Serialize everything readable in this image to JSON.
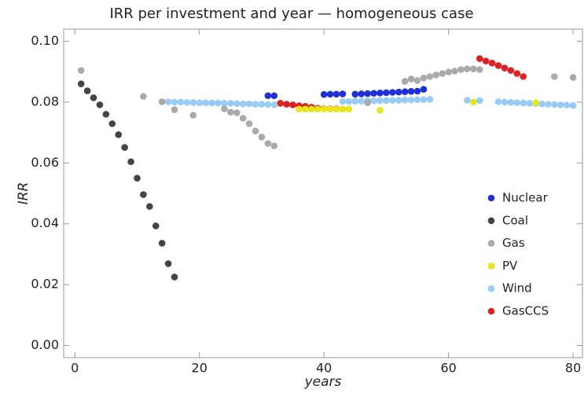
{
  "chart_data": {
    "type": "scatter",
    "title": "IRR per investment and year — homogeneous case",
    "x_label": "years",
    "y_label": "IRR",
    "xlim": [
      -1.8,
      81.5
    ],
    "ylim": [
      -0.004,
      0.104
    ],
    "xticks": [
      0,
      20,
      40,
      60,
      80
    ],
    "yticks": [
      {
        "value": 0,
        "label": "0.00"
      },
      {
        "value": 0.02,
        "label": "0.02"
      },
      {
        "value": 0.04,
        "label": "0.04"
      },
      {
        "value": 0.06,
        "label": "0.06"
      },
      {
        "value": 0.08,
        "label": "0.08"
      },
      {
        "value": 0.1,
        "label": "0.10"
      }
    ],
    "legend": "lower right",
    "series": [
      {
        "name": "Nuclear",
        "color": "#1f2fd6",
        "x": [
          31,
          32,
          40,
          41,
          42,
          43,
          45,
          46,
          47,
          48,
          49,
          50,
          51,
          52,
          53,
          54,
          55,
          56
        ],
        "values": [
          0.0821,
          0.0821,
          0.0825,
          0.0826,
          0.0826,
          0.0827,
          0.0826,
          0.0827,
          0.0828,
          0.0829,
          0.083,
          0.0831,
          0.0832,
          0.0833,
          0.0834,
          0.0835,
          0.0836,
          0.0842
        ]
      },
      {
        "name": "Coal",
        "color": "#444444",
        "x": [
          1,
          2,
          3,
          4,
          5,
          6,
          7,
          8,
          9,
          10,
          11,
          12,
          13,
          14,
          15,
          16
        ],
        "values": [
          0.086,
          0.0837,
          0.0814,
          0.0791,
          0.076,
          0.0729,
          0.0693,
          0.0651,
          0.0604,
          0.055,
          0.0496,
          0.0457,
          0.0393,
          0.0336,
          0.0269,
          0.0225
        ]
      },
      {
        "name": "Gas",
        "color": "#aaaaaa",
        "x": [
          1,
          11,
          14,
          16,
          19,
          24,
          25,
          26,
          27,
          28,
          29,
          30,
          31,
          32,
          47,
          53,
          54,
          55,
          56,
          57,
          58,
          59,
          60,
          61,
          62,
          63,
          64,
          65,
          77,
          80
        ],
        "values": [
          0.0904,
          0.0819,
          0.0801,
          0.0775,
          0.0757,
          0.0778,
          0.0767,
          0.0765,
          0.0747,
          0.0729,
          0.0705,
          0.0685,
          0.0664,
          0.0656,
          0.0798,
          0.0868,
          0.0876,
          0.0871,
          0.0879,
          0.0884,
          0.0889,
          0.0894,
          0.0899,
          0.0902,
          0.0907,
          0.0909,
          0.0909,
          0.0907,
          0.0884,
          0.0881
        ]
      },
      {
        "name": "PV",
        "color": "#e6e61a",
        "x": [
          36,
          37,
          38,
          39,
          40,
          41,
          42,
          43,
          44,
          49,
          64,
          74
        ],
        "values": [
          0.0777,
          0.0777,
          0.0777,
          0.0777,
          0.0777,
          0.0777,
          0.0777,
          0.0777,
          0.0777,
          0.0773,
          0.08,
          0.0798
        ]
      },
      {
        "name": "Wind",
        "color": "#99ccf5",
        "x": [
          14,
          15,
          16,
          17,
          18,
          19,
          20,
          21,
          22,
          23,
          24,
          25,
          26,
          27,
          28,
          29,
          30,
          31,
          32,
          43,
          44,
          45,
          46,
          47,
          48,
          49,
          50,
          51,
          52,
          53,
          54,
          55,
          56,
          57,
          63,
          65,
          68,
          69,
          70,
          71,
          72,
          73,
          74,
          75,
          76,
          77,
          78,
          79,
          80
        ],
        "values": [
          0.0801,
          0.0801,
          0.08,
          0.08,
          0.0799,
          0.0799,
          0.0798,
          0.0798,
          0.0797,
          0.0797,
          0.0796,
          0.0796,
          0.0795,
          0.0794,
          0.0794,
          0.0793,
          0.0793,
          0.0792,
          0.0791,
          0.0802,
          0.0802,
          0.0803,
          0.0803,
          0.0804,
          0.0804,
          0.0805,
          0.0805,
          0.0806,
          0.0806,
          0.0807,
          0.0807,
          0.0808,
          0.0808,
          0.0809,
          0.0806,
          0.0805,
          0.0801,
          0.08,
          0.0799,
          0.0798,
          0.0797,
          0.0796,
          0.0795,
          0.0794,
          0.0793,
          0.0792,
          0.0791,
          0.079,
          0.0789
        ]
      },
      {
        "name": "GasCCS",
        "color": "#dd2020",
        "x": [
          33,
          34,
          35,
          36,
          37,
          38,
          39,
          40,
          41,
          42,
          65,
          66,
          67,
          68,
          69,
          70,
          71,
          72
        ],
        "values": [
          0.0796,
          0.0793,
          0.0791,
          0.0788,
          0.0786,
          0.0783,
          0.078,
          0.0778,
          0.0778,
          0.0778,
          0.0943,
          0.0935,
          0.0928,
          0.092,
          0.0912,
          0.0904,
          0.0894,
          0.0884
        ]
      }
    ]
  }
}
